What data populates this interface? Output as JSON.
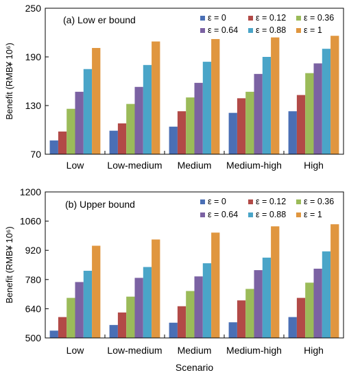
{
  "chart_data": [
    {
      "type": "bar",
      "title": "(a) Low er bound",
      "xlabel": "",
      "ylabel": "Benefit (RMB¥ 10⁶)",
      "ylim": [
        70,
        250
      ],
      "yticks": [
        70,
        130,
        190,
        250
      ],
      "legend_position": "top-right",
      "grid": false,
      "categories": [
        "Low",
        "Low-medium",
        "Medium",
        "Medium-high",
        "High"
      ],
      "series": [
        {
          "name": "ε = 0",
          "color": "#4a6fb5",
          "values": [
            87,
            99,
            104,
            121,
            123
          ]
        },
        {
          "name": "ε = 0.12",
          "color": "#b24a47",
          "values": [
            98,
            108,
            123,
            139,
            143
          ]
        },
        {
          "name": "ε = 0.36",
          "color": "#9bbb59",
          "values": [
            126,
            132,
            140,
            147,
            170
          ]
        },
        {
          "name": "ε = 0.64",
          "color": "#7b62a3",
          "values": [
            147,
            153,
            158,
            169,
            182
          ]
        },
        {
          "name": "ε = 0.88",
          "color": "#4aa5c8",
          "values": [
            175,
            180,
            184,
            190,
            200
          ]
        },
        {
          "name": "ε = 1",
          "color": "#e0963f",
          "values": [
            201,
            209,
            212,
            214,
            216
          ]
        }
      ]
    },
    {
      "type": "bar",
      "title": "(b) Upper bound",
      "xlabel": "Scenario",
      "ylabel": "Benefit (RMB¥ 10⁶)",
      "ylim": [
        500,
        1200
      ],
      "yticks": [
        500,
        640,
        780,
        920,
        1060,
        1200
      ],
      "legend_position": "top-right",
      "grid": false,
      "categories": [
        "Low",
        "Low-medium",
        "Medium",
        "Medium-high",
        "High"
      ],
      "series": [
        {
          "name": "ε = 0",
          "color": "#4a6fb5",
          "values": [
            535,
            562,
            573,
            575,
            600
          ]
        },
        {
          "name": "ε = 0.12",
          "color": "#b24a47",
          "values": [
            600,
            622,
            652,
            680,
            692
          ]
        },
        {
          "name": "ε = 0.36",
          "color": "#9bbb59",
          "values": [
            692,
            698,
            725,
            735,
            765
          ]
        },
        {
          "name": "ε = 0.64",
          "color": "#7b62a3",
          "values": [
            768,
            788,
            795,
            825,
            832
          ]
        },
        {
          "name": "ε = 0.88",
          "color": "#4aa5c8",
          "values": [
            822,
            840,
            858,
            885,
            915
          ]
        },
        {
          "name": "ε = 1",
          "color": "#e0963f",
          "values": [
            942,
            972,
            1005,
            1035,
            1045
          ]
        }
      ]
    }
  ]
}
